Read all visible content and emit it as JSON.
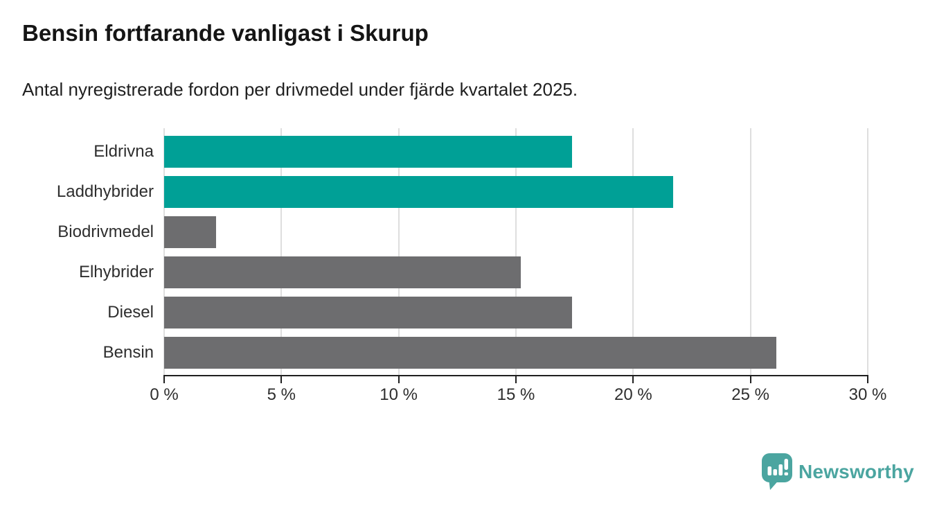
{
  "header": {
    "title": "Bensin fortfarande vanligast i Skurup",
    "subtitle": "Antal nyregistrerade fordon per drivmedel under fjärde kvartalet 2025."
  },
  "chart_data": {
    "type": "bar",
    "orientation": "horizontal",
    "title": "Bensin fortfarande vanligast i Skurup",
    "subtitle": "Antal nyregistrerade fordon per drivmedel under fjärde kvartalet 2025.",
    "categories": [
      "Eldrivna",
      "Laddhybrider",
      "Biodrivmedel",
      "Elhybrider",
      "Diesel",
      "Bensin"
    ],
    "values": [
      17.4,
      21.7,
      2.2,
      15.2,
      17.4,
      26.1
    ],
    "unit": "%",
    "xlim": [
      0,
      30
    ],
    "x_tick_values": [
      0,
      5,
      10,
      15,
      20,
      25,
      30
    ],
    "x_tick_labels": [
      "0 %",
      "5 %",
      "10 %",
      "15 %",
      "20 %",
      "25 %",
      "30 %"
    ],
    "bar_colors": [
      "#00a096",
      "#00a096",
      "#6d6d6f",
      "#6d6d6f",
      "#6d6d6f",
      "#6d6d6f"
    ],
    "grid": true,
    "legend": false,
    "xlabel": "",
    "ylabel": ""
  },
  "colors": {
    "highlight_teal": "#00a096",
    "neutral_gray": "#6d6d6f",
    "gridline": "#dedede",
    "axis": "#1f1f1f",
    "logo_teal": "#4ba5a0"
  },
  "footer": {
    "brand": "Newsworthy"
  }
}
